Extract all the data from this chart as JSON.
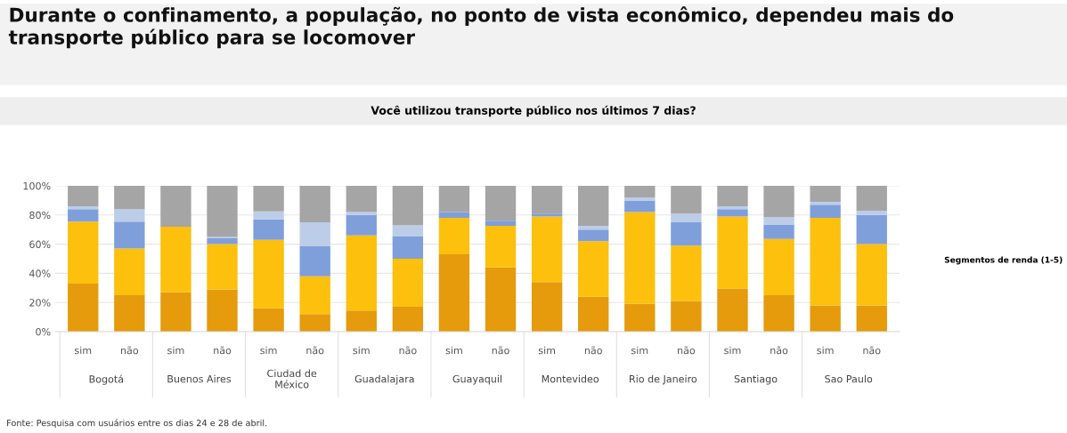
{
  "chart_data": {
    "type": "bar",
    "stacked": true,
    "title": "Durante o confinamento, a população, no ponto de vista econômico, dependeu mais do transporte público para se locomover",
    "subtitle": "Você utilizou transporte público nos últimos 7 dias?",
    "legend_title": "Segmentos de renda (1-5)",
    "categories": [
      "sim",
      "não",
      "sim",
      "não",
      "sim",
      "não",
      "sim",
      "não",
      "sim",
      "não",
      "sim",
      "não",
      "sim",
      "não",
      "sim",
      "não",
      "sim",
      "não"
    ],
    "annotations": [
      "Bogotá",
      "Buenos Aires",
      "Ciudad de\nMéxico",
      "Guadalajara",
      "Guayaquil",
      "Montevideo",
      "Rio de Janeiro",
      "Santiago",
      "Sao Paulo",
      "Fonte: Pesquisa com usuários entre os dias 24 e 28 de abril."
    ],
    "series": [
      {
        "color": "#e59b0b",
        "values": [
          33,
          25,
          27,
          29,
          16,
          12,
          14.5,
          17,
          53,
          44,
          34,
          24,
          19,
          21,
          29.5,
          25,
          18,
          18
        ]
      },
      {
        "color": "#fcc00d",
        "values": [
          42.5,
          32,
          45,
          31,
          47,
          26,
          51.5,
          33,
          25,
          28.5,
          45,
          38,
          63,
          38,
          49.5,
          38.5,
          60,
          42
        ]
      },
      {
        "color": "#7f9fdb",
        "values": [
          8.5,
          18.5,
          0,
          4,
          14,
          20.5,
          14,
          15.5,
          4,
          3.5,
          2,
          8,
          8,
          16,
          5,
          10,
          9,
          20
        ]
      },
      {
        "color": "#bccde8",
        "values": [
          2,
          8.5,
          0,
          1,
          5.5,
          16.5,
          2,
          7.5,
          0,
          0,
          0,
          2.5,
          2,
          6,
          2,
          5,
          2,
          3
        ]
      },
      {
        "color": "#a5a5a5",
        "values": [
          14,
          16,
          28,
          35,
          17.5,
          25,
          18,
          27,
          18,
          24,
          19,
          27.5,
          8,
          19,
          14,
          21.5,
          11,
          17
        ]
      }
    ],
    "ylim": [
      0,
      100
    ],
    "yticks": [
      {
        "value": 0,
        "label": "0%"
      },
      {
        "value": 20,
        "label": "20%"
      },
      {
        "value": 40,
        "label": "40%"
      },
      {
        "value": 60,
        "label": "60%"
      },
      {
        "value": 80,
        "label": "80%"
      },
      {
        "value": 100,
        "label": "100%"
      }
    ],
    "grid": "y"
  }
}
